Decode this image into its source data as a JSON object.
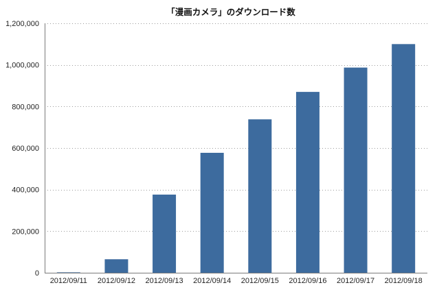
{
  "chart_data": {
    "type": "bar",
    "title": "「漫画カメラ」のダウンロード数",
    "xlabel": "",
    "ylabel": "",
    "categories": [
      "2012/09/11",
      "2012/09/12",
      "2012/09/13",
      "2012/09/14",
      "2012/09/15",
      "2012/09/16",
      "2012/09/17",
      "2012/09/18"
    ],
    "values": [
      2000,
      65000,
      376000,
      577000,
      738000,
      870000,
      987000,
      1100000
    ],
    "ylim": [
      0,
      1200000
    ],
    "yticks": [
      0,
      200000,
      400000,
      600000,
      800000,
      1000000,
      1200000
    ],
    "ytick_labels": [
      "0",
      "200,000",
      "400,000",
      "600,000",
      "800,000",
      "1,000,000",
      "1,200,000"
    ],
    "grid": "horizontal dotted",
    "legend": "none",
    "bar_color": "#3d6b9e",
    "grid_color": "#9a9a9a",
    "axis_color": "#7a7a7a"
  }
}
